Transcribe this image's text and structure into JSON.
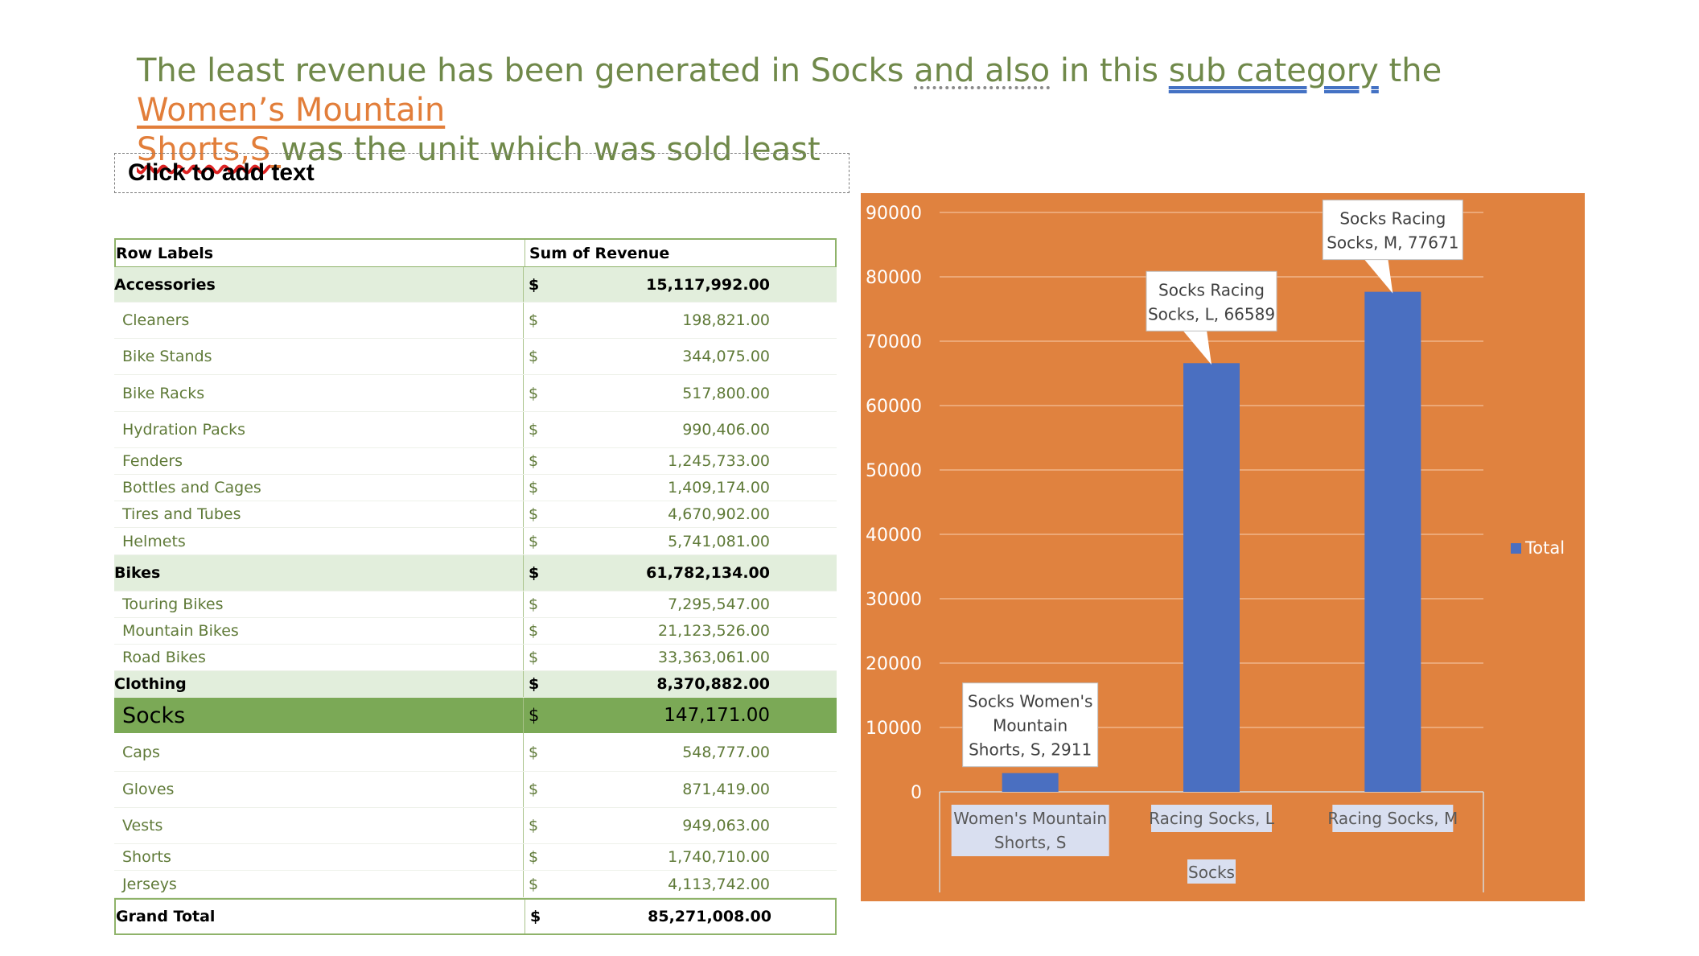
{
  "slide": {
    "title_part1": "The least revenue has been generated in Socks ",
    "title_dotted": "and also",
    "title_part2": " in this ",
    "title_double": "sub category",
    "title_part3": " the ",
    "title_link1": "Women’s Mountain",
    "title_link2": "Shorts,S",
    "title_link3": " ",
    "title_part4": "was the unit which was sold least",
    "placeholder": "Click to add text"
  },
  "pivot": {
    "header_label": "Row Labels",
    "header_value": "Sum of Revenue",
    "currency": "$",
    "rows": [
      {
        "label": "Accessories",
        "value": "15,117,992.00",
        "kind": "cat"
      },
      {
        "label": "Cleaners",
        "value": "198,821.00",
        "kind": "item"
      },
      {
        "label": "Bike Stands",
        "value": "344,075.00",
        "kind": "item"
      },
      {
        "label": "Bike Racks",
        "value": "517,800.00",
        "kind": "item"
      },
      {
        "label": "Hydration Packs",
        "value": "990,406.00",
        "kind": "item"
      },
      {
        "label": "Fenders",
        "value": "1,245,733.00",
        "kind": "item"
      },
      {
        "label": "Bottles and Cages",
        "value": "1,409,174.00",
        "kind": "item"
      },
      {
        "label": "Tires and Tubes",
        "value": "4,670,902.00",
        "kind": "item"
      },
      {
        "label": "Helmets",
        "value": "5,741,081.00",
        "kind": "item"
      },
      {
        "label": "Bikes",
        "value": "61,782,134.00",
        "kind": "cat"
      },
      {
        "label": "Touring Bikes",
        "value": "7,295,547.00",
        "kind": "item"
      },
      {
        "label": "Mountain Bikes",
        "value": "21,123,526.00",
        "kind": "item"
      },
      {
        "label": "Road Bikes",
        "value": "33,363,061.00",
        "kind": "item"
      },
      {
        "label": "Clothing",
        "value": "8,370,882.00",
        "kind": "clothing"
      },
      {
        "label": "Socks",
        "value": "147,171.00",
        "kind": "hl"
      },
      {
        "label": "Caps",
        "value": "548,777.00",
        "kind": "item"
      },
      {
        "label": "Gloves",
        "value": "871,419.00",
        "kind": "item"
      },
      {
        "label": "Vests",
        "value": "949,063.00",
        "kind": "item"
      },
      {
        "label": "Shorts",
        "value": "1,740,710.00",
        "kind": "item"
      },
      {
        "label": "Jerseys",
        "value": "4,113,742.00",
        "kind": "item"
      },
      {
        "label": "Grand Total",
        "value": "85,271,008.00",
        "kind": "total"
      }
    ]
  },
  "colors": {
    "chart_background": "#e0823f",
    "bar": "#4a6fc1",
    "table_accent": "#7ba956",
    "title_text": "#70894a",
    "title_link": "#e27e3a"
  },
  "chart_data": {
    "type": "bar",
    "categories": [
      "Women's Mountain Shorts, S",
      "Racing Socks, L",
      "Racing Socks, M"
    ],
    "category_lines": [
      [
        "Women's Mountain",
        "Shorts, S"
      ],
      [
        "Racing Socks, L"
      ],
      [
        "Racing Socks, M"
      ]
    ],
    "group_label": "Socks",
    "series": [
      {
        "name": "Total",
        "values": [
          2911,
          66589,
          77671
        ]
      }
    ],
    "data_labels": [
      [
        "Socks Women's",
        "Mountain",
        "Shorts, S, 2911"
      ],
      [
        "Socks Racing",
        "Socks, L, 66589"
      ],
      [
        "Socks Racing",
        "Socks, M, 77671"
      ]
    ],
    "ylim": [
      0,
      90000
    ],
    "yticks": [
      0,
      10000,
      20000,
      30000,
      40000,
      50000,
      60000,
      70000,
      80000,
      90000
    ],
    "grid": true,
    "legend": "right",
    "title": "",
    "xlabel": "",
    "ylabel": ""
  }
}
